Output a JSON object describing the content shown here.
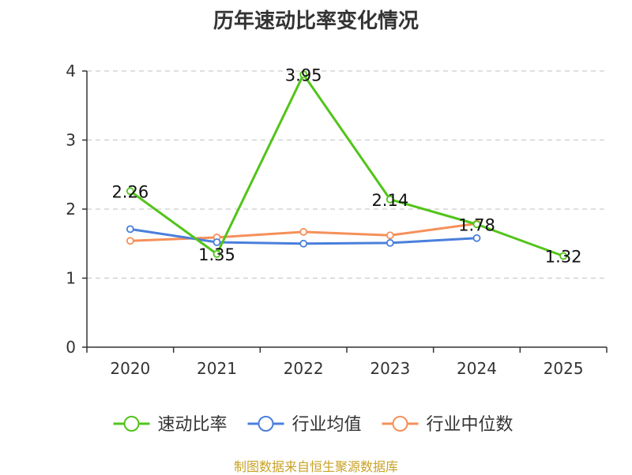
{
  "chart_data": {
    "type": "line",
    "title": "历年速动比率变化情况",
    "categories": [
      "2020",
      "2021",
      "2022",
      "2023",
      "2024",
      "2025"
    ],
    "ylim": [
      0,
      4
    ],
    "yticks": [
      0,
      1,
      2,
      3,
      4
    ],
    "grid": "horizontal-dashed",
    "legend_position": "bottom",
    "series": [
      {
        "name": "速动比率",
        "color": "#52c41a",
        "values": [
          2.26,
          1.35,
          3.95,
          2.14,
          1.78,
          1.32
        ],
        "labels": [
          "2.26",
          "1.35",
          "3.95",
          "2.14",
          "1.78",
          "1.32"
        ]
      },
      {
        "name": "行业均值",
        "color": "#4a7fdc",
        "values": [
          1.71,
          1.52,
          1.5,
          1.51,
          1.58,
          null
        ]
      },
      {
        "name": "行业中位数",
        "color": "#f5905a",
        "values": [
          1.54,
          1.59,
          1.67,
          1.62,
          1.79,
          null
        ]
      }
    ],
    "source": "制图数据来自恒生聚源数据库"
  }
}
